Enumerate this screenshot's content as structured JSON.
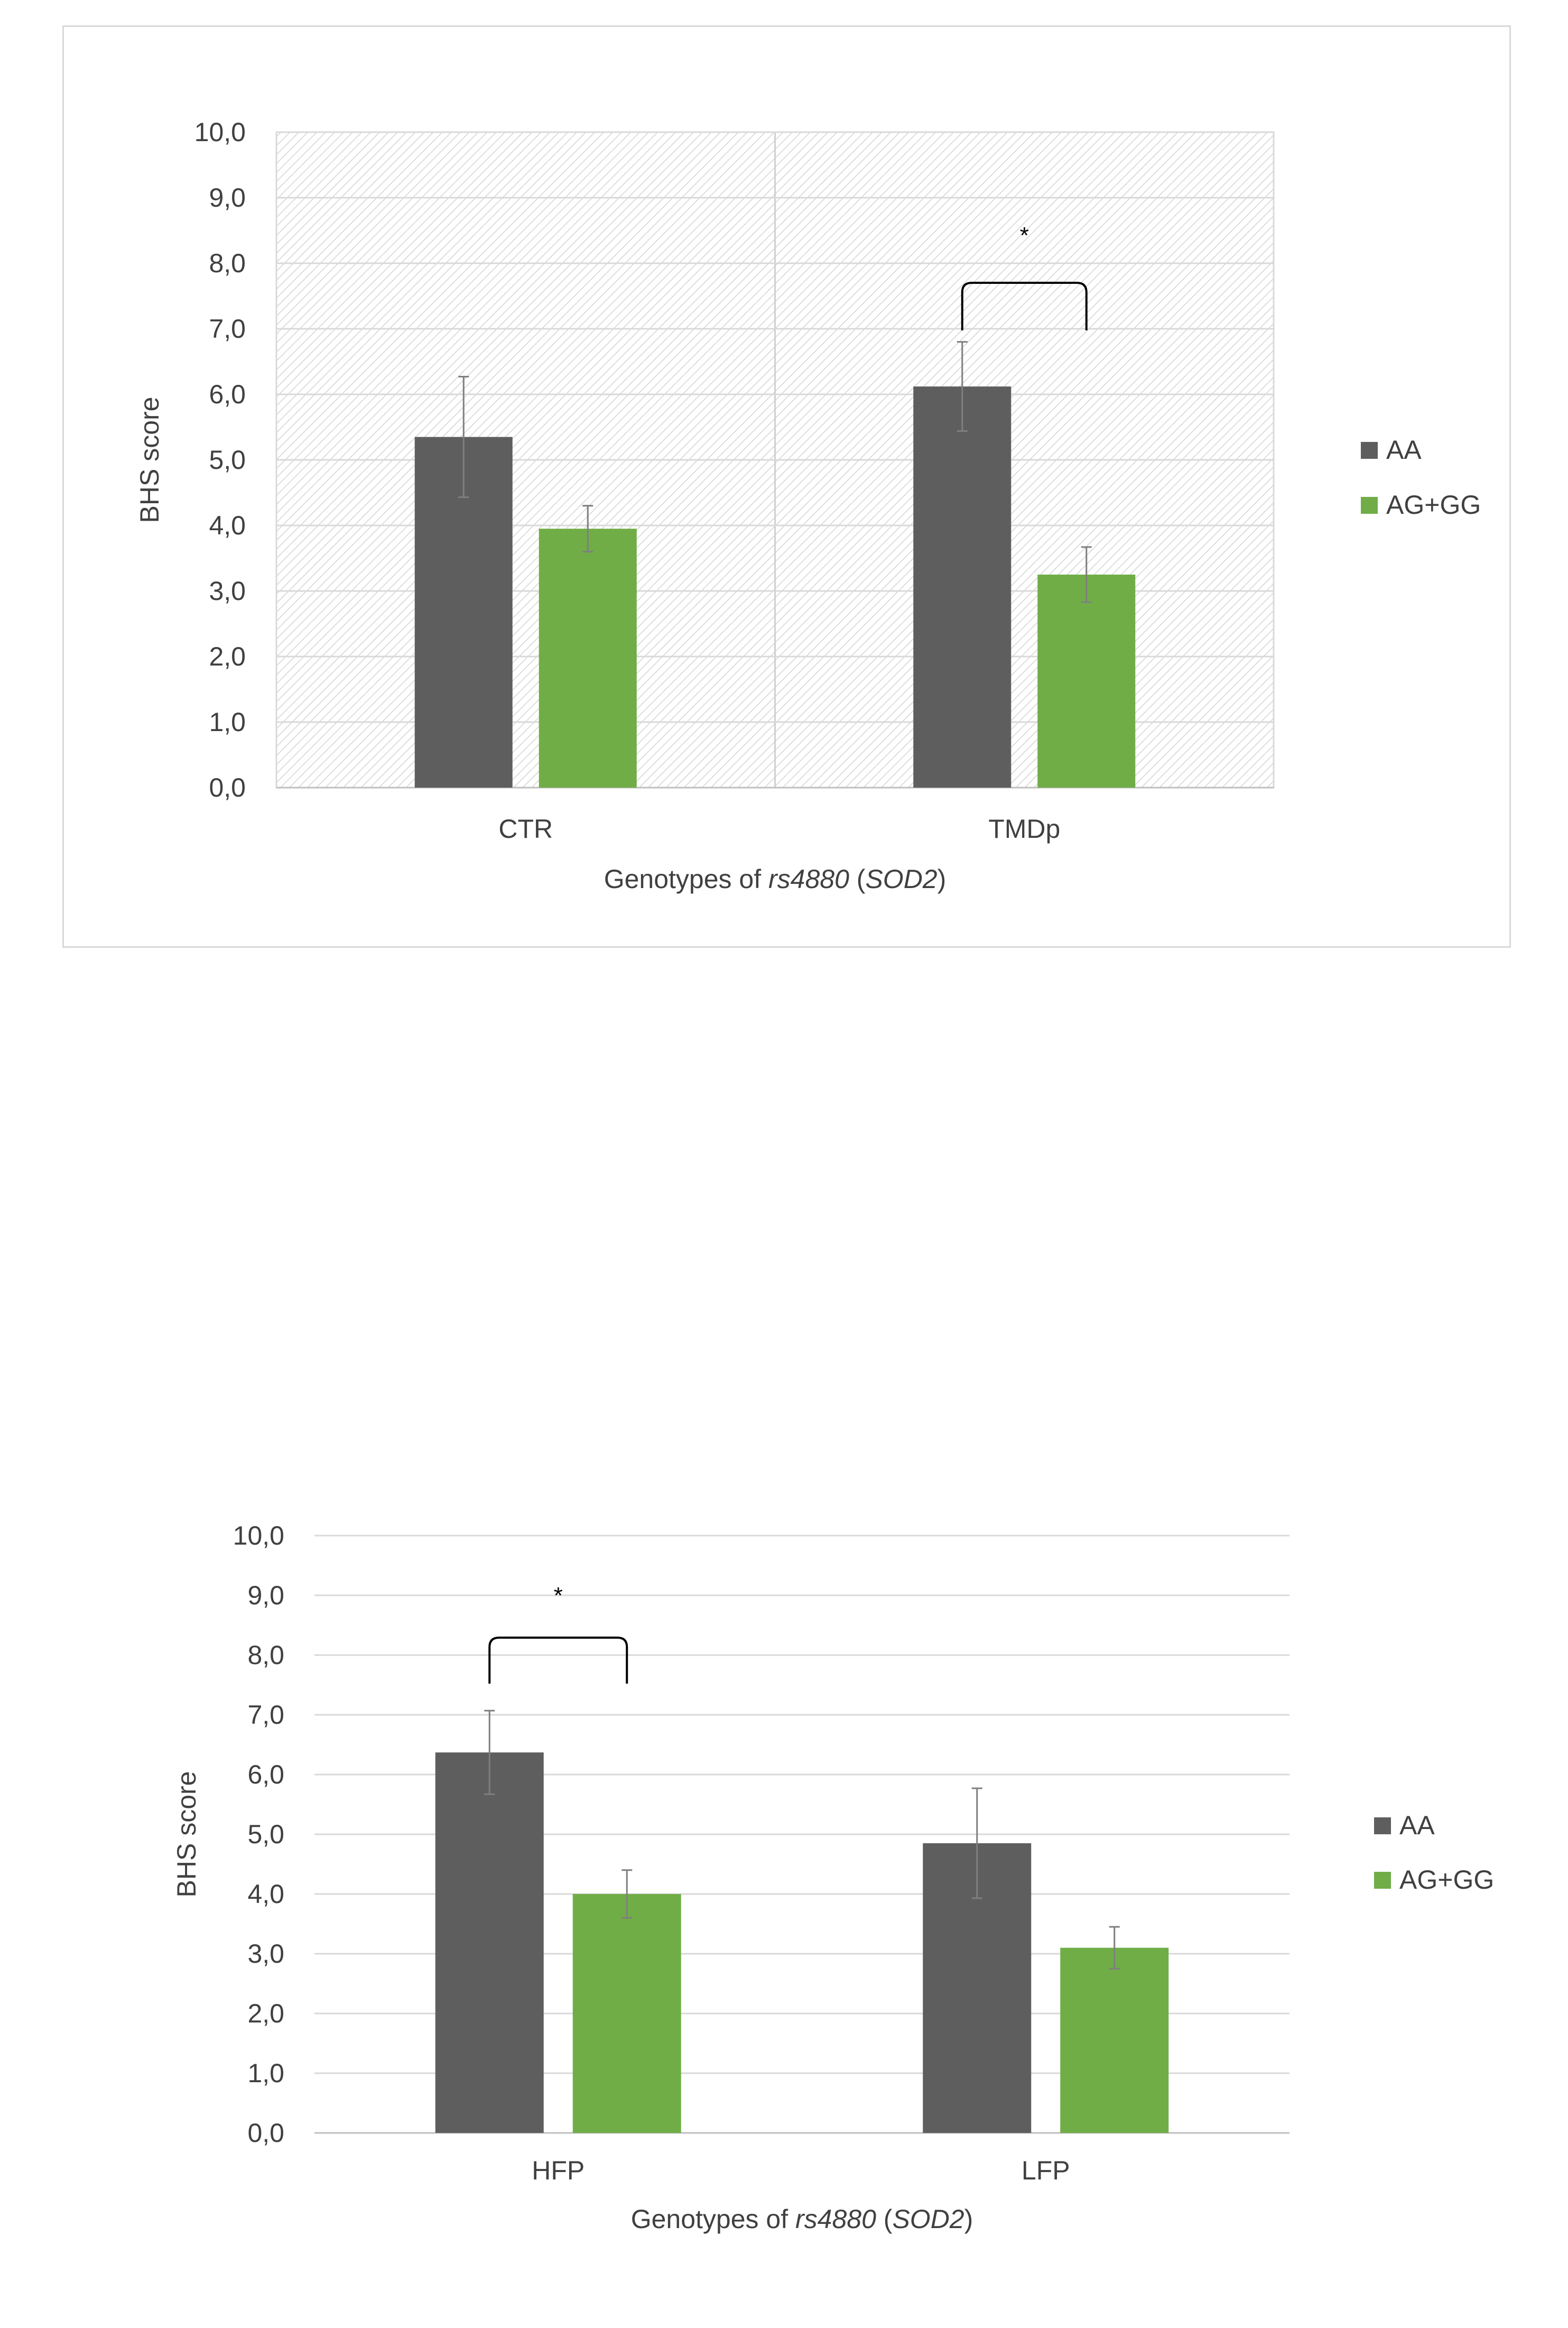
{
  "chart_data": [
    {
      "type": "bar",
      "title": "",
      "categories": [
        "CTR",
        "TMDp"
      ],
      "series": [
        {
          "name": "AA",
          "values": [
            5.35,
            6.12
          ],
          "errors": [
            0.92,
            0.68
          ]
        },
        {
          "name": "AG+GG",
          "values": [
            3.95,
            3.25
          ],
          "errors": [
            0.35,
            0.42
          ]
        }
      ],
      "xlabel": {
        "prefix": "Genotypes of ",
        "snp": "rs4880",
        "open": " (",
        "gene": "SOD2",
        "close": ")"
      },
      "ylabel": "BHS score",
      "ylim": [
        0,
        10
      ],
      "yticks": [
        "0,0",
        "1,0",
        "2,0",
        "3,0",
        "4,0",
        "5,0",
        "6,0",
        "7,0",
        "8,0",
        "9,0",
        "10,0"
      ],
      "grid": true,
      "plot_background": "hatched",
      "legend_position": "right",
      "significance": [
        {
          "category": "TMDp",
          "label": "*"
        }
      ],
      "colors": {
        "AA": "#5e5e5e",
        "AG+GG": "#70ad47"
      }
    },
    {
      "type": "bar",
      "title": "",
      "categories": [
        "HFP",
        "LFP"
      ],
      "series": [
        {
          "name": "AA",
          "values": [
            6.37,
            4.85
          ],
          "errors": [
            0.7,
            0.92
          ]
        },
        {
          "name": "AG+GG",
          "values": [
            4.0,
            3.1
          ],
          "errors": [
            0.4,
            0.35
          ]
        }
      ],
      "xlabel": {
        "prefix": "Genotypes of ",
        "snp": "rs4880",
        "open": " (",
        "gene": "SOD2",
        "close": ")"
      },
      "ylabel": "BHS score",
      "ylim": [
        0,
        10
      ],
      "yticks": [
        "0,0",
        "1,0",
        "2,0",
        "3,0",
        "4,0",
        "5,0",
        "6,0",
        "7,0",
        "8,0",
        "9,0",
        "10,0"
      ],
      "grid": true,
      "plot_background": "plain",
      "legend_position": "right",
      "significance": [
        {
          "category": "HFP",
          "label": "*"
        }
      ],
      "colors": {
        "AA": "#5e5e5e",
        "AG+GG": "#70ad47"
      }
    }
  ]
}
